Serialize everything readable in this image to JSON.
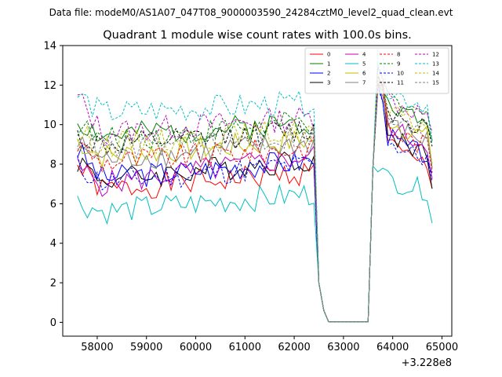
{
  "figure": {
    "file_label": "Data file: modeM0/AS1A07_047T08_9000003590_24284cztM0_level2_quad_clean.evt"
  },
  "chart_data": {
    "type": "line",
    "title": "Quadrant 1 module wise count rates with 100.0s bins.",
    "xlabel": "",
    "ylabel": "",
    "x_offset_label": "+3.228e8",
    "x_tick_labels": [
      "58000",
      "59000",
      "60000",
      "61000",
      "62000",
      "63000",
      "64000",
      "65000"
    ],
    "x_ticks": [
      58000,
      59000,
      60000,
      61000,
      62000,
      63000,
      64000,
      65000
    ],
    "y_tick_labels": [
      "0",
      "2",
      "4",
      "6",
      "8",
      "10",
      "12",
      "14"
    ],
    "y_ticks": [
      0,
      2,
      4,
      6,
      8,
      10,
      12,
      14
    ],
    "xlim": [
      57300,
      65200
    ],
    "ylim": [
      -0.7,
      14
    ],
    "x_start": 57600,
    "x_step": 100,
    "legend_location": "upper right",
    "series": [
      {
        "name": "0",
        "color": "#ff0000",
        "style": "solid",
        "plateau1": 6.7,
        "plateau2": 8.2,
        "start": 7.9,
        "peak": 12.6,
        "seed": 1
      },
      {
        "name": "1",
        "color": "#008000",
        "style": "solid",
        "plateau1": 9.4,
        "plateau2": 10.6,
        "start": 10.2,
        "peak": 12.4,
        "seed": 2
      },
      {
        "name": "2",
        "color": "#0000ff",
        "style": "solid",
        "plateau1": 7.3,
        "plateau2": 8.8,
        "start": 8.7,
        "peak": 11.9,
        "seed": 3
      },
      {
        "name": "3",
        "color": "#000000",
        "style": "solid",
        "plateau1": 7.2,
        "plateau2": 9.0,
        "start": 8.2,
        "peak": 12.0,
        "seed": 4
      },
      {
        "name": "4",
        "color": "#bf00bf",
        "style": "solid",
        "plateau1": 7.0,
        "plateau2": 9.4,
        "start": 7.8,
        "peak": 12.3,
        "seed": 5
      },
      {
        "name": "5",
        "color": "#00bfbf",
        "style": "solid",
        "plateau1": 5.6,
        "plateau2": 7.1,
        "start": 6.1,
        "peak": 8.0,
        "seed": 6
      },
      {
        "name": "6",
        "color": "#bfbf00",
        "style": "solid",
        "plateau1": 8.4,
        "plateau2": 9.8,
        "start": 9.2,
        "peak": 12.1,
        "seed": 7
      },
      {
        "name": "7",
        "color": "#808080",
        "style": "solid",
        "plateau1": 8.2,
        "plateau2": 9.6,
        "start": 9.0,
        "peak": 11.8,
        "seed": 8
      },
      {
        "name": "8",
        "color": "#ff0000",
        "style": "dashed",
        "plateau1": 8.1,
        "plateau2": 9.3,
        "start": 9.0,
        "peak": 12.2,
        "seed": 9
      },
      {
        "name": "9",
        "color": "#008000",
        "style": "dashed",
        "plateau1": 9.2,
        "plateau2": 10.8,
        "start": 10.0,
        "peak": 12.7,
        "seed": 10
      },
      {
        "name": "10",
        "color": "#0000ff",
        "style": "dashed",
        "plateau1": 7.1,
        "plateau2": 8.6,
        "start": 7.9,
        "peak": 11.7,
        "seed": 11
      },
      {
        "name": "11",
        "color": "#000000",
        "style": "dashed",
        "plateau1": 8.9,
        "plateau2": 10.3,
        "start": 9.4,
        "peak": 12.5,
        "seed": 12
      },
      {
        "name": "12",
        "color": "#bf00bf",
        "style": "dashed",
        "plateau1": 9.6,
        "plateau2": 10.9,
        "start": 11.4,
        "peak": 13.1,
        "seed": 13
      },
      {
        "name": "13",
        "color": "#00bfbf",
        "style": "dashed",
        "plateau1": 10.6,
        "plateau2": 11.4,
        "start": 11.5,
        "peak": 13.4,
        "seed": 14
      },
      {
        "name": "14",
        "color": "#bfbf00",
        "style": "dashed",
        "plateau1": 9.0,
        "plateau2": 10.2,
        "start": 9.5,
        "peak": 12.4,
        "seed": 15
      },
      {
        "name": "15",
        "color": "#808080",
        "style": "dashed",
        "plateau1": 8.7,
        "plateau2": 9.9,
        "start": 9.3,
        "peak": 12.0,
        "seed": 16
      }
    ]
  }
}
